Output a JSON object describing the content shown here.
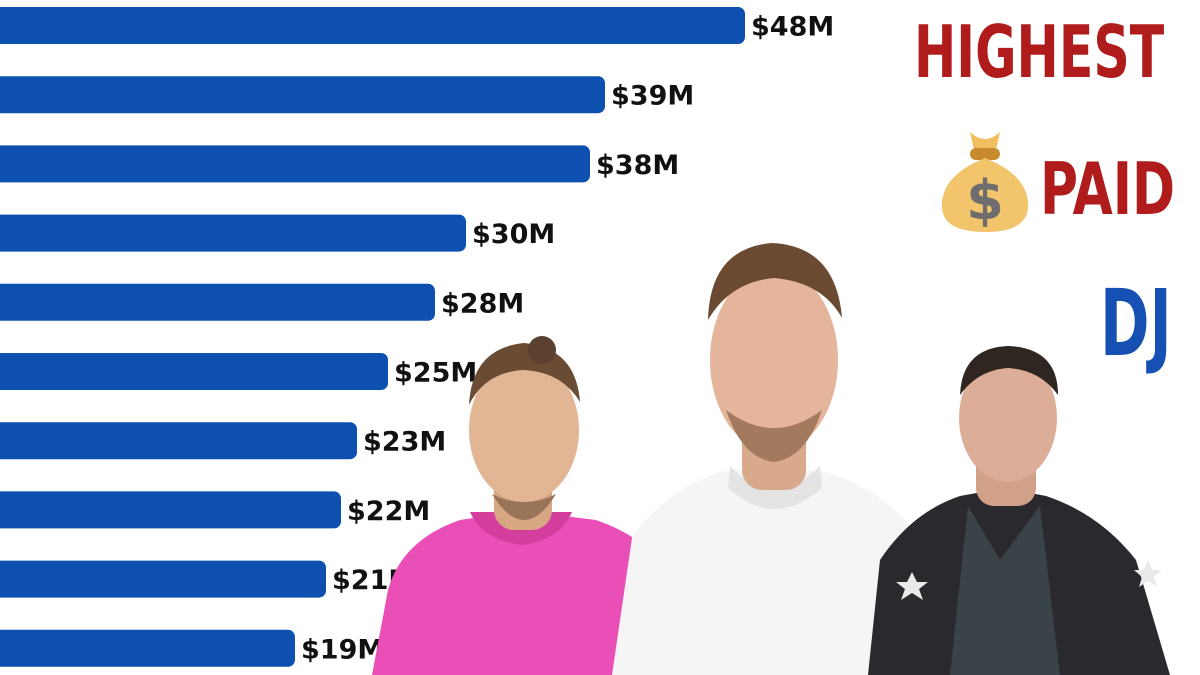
{
  "title": {
    "line1": "HIGHEST",
    "line2": "PAID",
    "line3": "DJ"
  },
  "colors": {
    "bar": "#0e50b0",
    "title_red": "#b01c1c",
    "title_blue": "#1650b3",
    "label": "#111111",
    "money_bag": "#f2c46b"
  },
  "icons": {
    "money_bag": "money-bag-icon"
  },
  "chart_data": {
    "type": "bar",
    "orientation": "horizontal",
    "values": [
      48,
      39,
      38,
      30,
      28,
      25,
      23,
      22,
      21,
      19
    ],
    "labels": [
      "$48M",
      "$39M",
      "$38M",
      "$30M",
      "$28M",
      "$25M",
      "$23M",
      "$22M",
      "$21M",
      "$19M"
    ],
    "unit": "M"
  }
}
